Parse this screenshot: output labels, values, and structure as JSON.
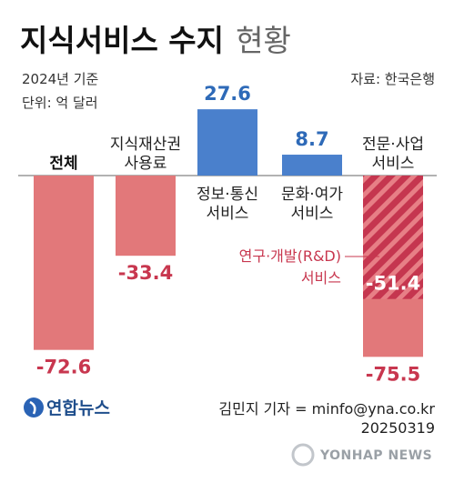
{
  "header": {
    "title_main": "지식서비스 수지",
    "title_sub": "현황",
    "year_label": "2024년 기준",
    "unit_label": "단위: 억 달러",
    "source_label": "자료: 한국은행"
  },
  "chart_data": {
    "type": "bar",
    "categories": [
      [
        "전체"
      ],
      [
        "지식재산권",
        "사용료"
      ],
      [
        "정보·통신",
        "서비스"
      ],
      [
        "문화·여가",
        "서비스"
      ],
      [
        "전문·사업",
        "서비스"
      ]
    ],
    "values": [
      -72.6,
      -33.4,
      27.6,
      8.7,
      -75.5
    ],
    "value_labels": [
      "-72.6",
      "-33.4",
      "27.6",
      "8.7",
      "-75.5"
    ],
    "sub_segment": {
      "category_index": 4,
      "name": "연구·개발(R&D) 서비스",
      "name_lines": [
        "연구·개발(R&D)",
        "서비스"
      ],
      "value": -51.4,
      "value_label": "-51.4"
    },
    "colors": {
      "negative": "#e2787a",
      "positive": "#4a80cc",
      "rd_stripe": "#c5364f",
      "negative_text": "#c8374f",
      "positive_text": "#2e6ab8"
    }
  },
  "footer": {
    "logo_text": "연합뉴스",
    "credit": "김민지 기자 = minfo@yna.co.kr",
    "date": "20250319",
    "watermark": "YONHAP NEWS"
  }
}
